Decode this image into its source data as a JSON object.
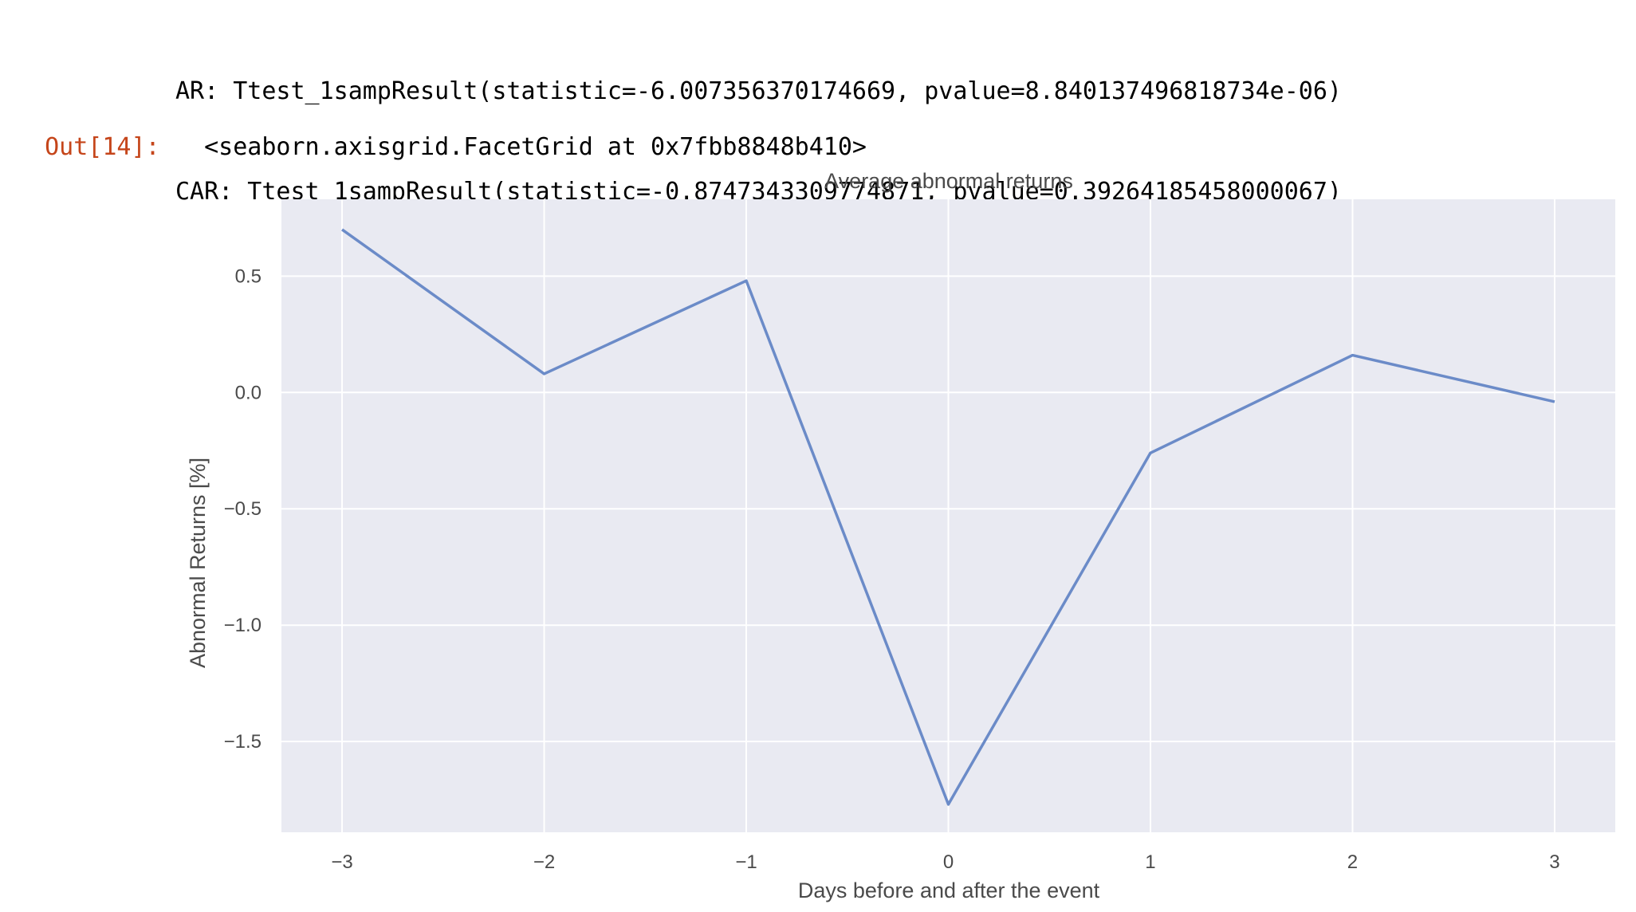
{
  "stdout_lines": [
    "AR: Ttest_1sampResult(statistic=-6.007356370174669, pvalue=8.840137496818734e-06)",
    "CAR: Ttest_1sampResult(statistic=-0.8747343309774871, pvalue=0.39264185458000067)"
  ],
  "output": {
    "prompt": "Out[14]:",
    "text": "<seaborn.axisgrid.FacetGrid at 0x7fbb8848b410>"
  },
  "chart_data": {
    "type": "line",
    "title": "Average abnormal returns",
    "xlabel": "Days before and after the event",
    "ylabel": "Abnormal Returns [%]",
    "x": [
      -3,
      -2,
      -1,
      0,
      1,
      2,
      3
    ],
    "y": [
      0.7,
      0.08,
      0.48,
      -1.77,
      -0.26,
      0.16,
      -0.04
    ],
    "xlim": [
      -3.3,
      3.3
    ],
    "ylim": [
      -1.89,
      0.83
    ],
    "xticks": [
      -3,
      -2,
      -1,
      0,
      1,
      2,
      3
    ],
    "xtick_labels": [
      "−3",
      "−2",
      "−1",
      "0",
      "1",
      "2",
      "3"
    ],
    "yticks": [
      0.5,
      0.0,
      -0.5,
      -1.0,
      -1.5
    ],
    "ytick_labels": [
      "0.5",
      "0.0",
      "−0.5",
      "−1.0",
      "−1.5"
    ],
    "grid": true,
    "colors": {
      "line": "#6b8bc8",
      "plot_bg": "#e9eaf2",
      "grid": "#ffffff"
    }
  }
}
